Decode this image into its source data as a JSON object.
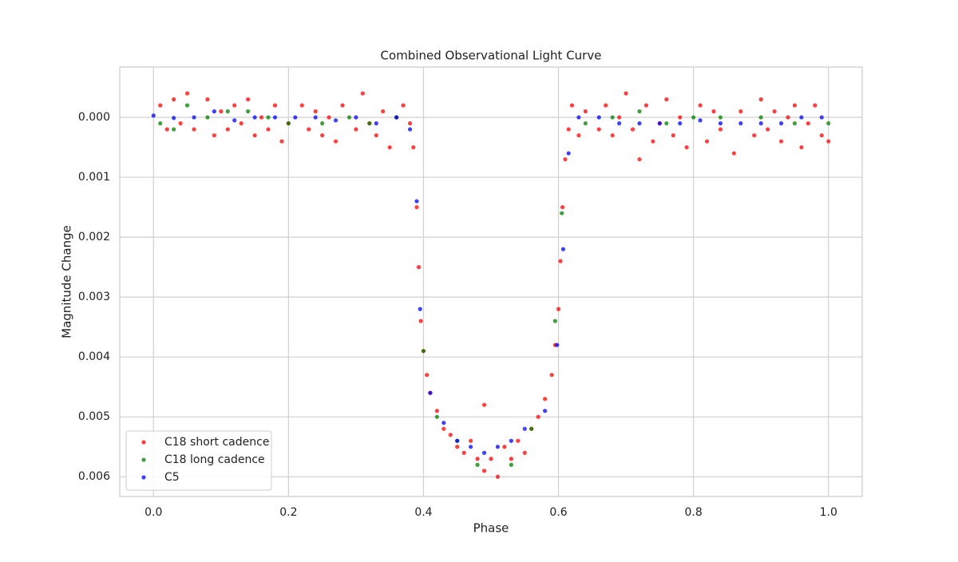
{
  "chart_data": {
    "type": "scatter",
    "title": "Combined Observational Light Curve",
    "x_label": "Phase",
    "y_label": "Magnitude Change",
    "xlim": [
      -0.05,
      1.05
    ],
    "ylim": [
      0.00633,
      -0.00084
    ],
    "xticks": [
      {
        "value": 0,
        "label": "0.0"
      },
      0.2,
      0.4,
      0.6,
      0.8,
      {
        "value": 1,
        "label": "1.0"
      }
    ],
    "yticks": [
      {
        "value": 0,
        "label": "0.000"
      },
      {
        "value": 0.001,
        "label": "0.001"
      },
      {
        "value": 0.002,
        "label": "0.002"
      },
      {
        "value": 0.003,
        "label": "0.003"
      },
      {
        "value": 0.004,
        "label": "0.004"
      },
      {
        "value": 0.005,
        "label": "0.005"
      },
      {
        "value": 0.006,
        "label": "0.006"
      }
    ],
    "grid": true,
    "legend_position": "lower-left",
    "series": [
      {
        "name": "C18 short cadence",
        "color": "#ff0000",
        "x": [
          0.01,
          0.02,
          0.03,
          0.04,
          0.05,
          0.06,
          0.08,
          0.09,
          0.1,
          0.11,
          0.12,
          0.13,
          0.14,
          0.15,
          0.16,
          0.17,
          0.18,
          0.19,
          0.2,
          0.22,
          0.23,
          0.24,
          0.25,
          0.26,
          0.27,
          0.28,
          0.3,
          0.31,
          0.32,
          0.33,
          0.34,
          0.35,
          0.36,
          0.37,
          0.38,
          0.385,
          0.39,
          0.393,
          0.396,
          0.4,
          0.405,
          0.41,
          0.42,
          0.43,
          0.44,
          0.45,
          0.46,
          0.47,
          0.48,
          0.49,
          0.49,
          0.5,
          0.51,
          0.52,
          0.53,
          0.54,
          0.55,
          0.56,
          0.57,
          0.58,
          0.59,
          0.595,
          0.6,
          0.603,
          0.606,
          0.61,
          0.615,
          0.62,
          0.63,
          0.64,
          0.66,
          0.67,
          0.68,
          0.69,
          0.7,
          0.71,
          0.72,
          0.73,
          0.74,
          0.75,
          0.76,
          0.77,
          0.78,
          0.79,
          0.81,
          0.82,
          0.83,
          0.84,
          0.86,
          0.87,
          0.89,
          0.9,
          0.91,
          0.92,
          0.93,
          0.94,
          0.95,
          0.96,
          0.97,
          0.98,
          0.99,
          1.0
        ],
        "values": [
          -0.0002,
          0.0002,
          -0.0003,
          0.0001,
          -0.0004,
          0.0002,
          -0.0003,
          0.0003,
          -0.0001,
          0.0002,
          -0.0002,
          0.0001,
          -0.0003,
          0.0003,
          0.0,
          0.0002,
          -0.0002,
          0.0004,
          0.0001,
          -0.0002,
          0.0002,
          -0.0001,
          0.0003,
          0.0,
          0.0004,
          -0.0002,
          0.0002,
          -0.0004,
          0.0001,
          0.0003,
          -0.0001,
          0.0005,
          0.0,
          -0.0002,
          0.0001,
          0.0005,
          0.0015,
          0.0025,
          0.0034,
          0.0039,
          0.0043,
          0.0046,
          0.0049,
          0.0052,
          0.0053,
          0.0055,
          0.0056,
          0.0054,
          0.0057,
          0.0059,
          0.0048,
          0.0057,
          0.006,
          0.0055,
          0.0057,
          0.0054,
          0.0056,
          0.0052,
          0.005,
          0.0047,
          0.0043,
          0.0038,
          0.0032,
          0.0024,
          0.0015,
          0.0007,
          0.0002,
          -0.0002,
          0.0003,
          -0.0001,
          0.0002,
          -0.0002,
          0.0003,
          0.0,
          -0.0004,
          0.0002,
          0.0007,
          -0.0002,
          0.0004,
          0.0001,
          -0.0003,
          0.0003,
          0.0,
          0.0005,
          -0.0002,
          0.0004,
          -0.0001,
          0.0002,
          0.0006,
          -0.0001,
          0.0003,
          -0.0003,
          0.0002,
          -0.0001,
          0.0004,
          0.0,
          -0.0002,
          0.0005,
          0.0001,
          -0.0002,
          0.0003,
          0.0004
        ]
      },
      {
        "name": "C18 long cadence",
        "color": "#008000",
        "x": [
          0.01,
          0.03,
          0.05,
          0.08,
          0.11,
          0.14,
          0.17,
          0.2,
          0.25,
          0.29,
          0.32,
          0.36,
          0.4,
          0.42,
          0.45,
          0.48,
          0.53,
          0.56,
          0.595,
          0.605,
          0.64,
          0.68,
          0.72,
          0.76,
          0.8,
          0.84,
          0.9,
          0.95,
          1.0
        ],
        "values": [
          0.0001,
          0.0002,
          -0.0002,
          0.0,
          -0.0001,
          -0.0001,
          0.0,
          0.0001,
          0.0001,
          0.0,
          0.0001,
          0.0,
          0.0039,
          0.005,
          0.0054,
          0.0058,
          0.0058,
          0.0052,
          0.0034,
          0.0016,
          0.0001,
          0.0,
          -0.0001,
          0.0001,
          0.0,
          0.0,
          0.0,
          0.0001,
          0.0001
        ]
      },
      {
        "name": "C5",
        "color": "#0000ff",
        "x": [
          0.0,
          0.03,
          0.06,
          0.09,
          0.12,
          0.15,
          0.18,
          0.21,
          0.24,
          0.27,
          0.3,
          0.33,
          0.36,
          0.38,
          0.39,
          0.395,
          0.41,
          0.43,
          0.45,
          0.47,
          0.49,
          0.51,
          0.53,
          0.55,
          0.58,
          0.598,
          0.607,
          0.615,
          0.63,
          0.66,
          0.69,
          0.72,
          0.75,
          0.78,
          0.81,
          0.84,
          0.87,
          0.9,
          0.93,
          0.96,
          0.99
        ],
        "values": [
          -3e-05,
          1e-05,
          0.0,
          -0.0001,
          5e-05,
          0.0,
          0.0,
          0.0,
          0.0,
          5e-05,
          0.0,
          0.0001,
          0.0,
          0.0002,
          0.0014,
          0.0032,
          0.0046,
          0.0051,
          0.0054,
          0.0055,
          0.0056,
          0.0055,
          0.0054,
          0.0052,
          0.0049,
          0.0038,
          0.0022,
          0.0006,
          0.0,
          0.0,
          0.0001,
          0.0001,
          0.0001,
          0.0001,
          5e-05,
          0.0001,
          0.0001,
          0.0001,
          0.0001,
          0.0,
          0.0
        ]
      }
    ]
  }
}
